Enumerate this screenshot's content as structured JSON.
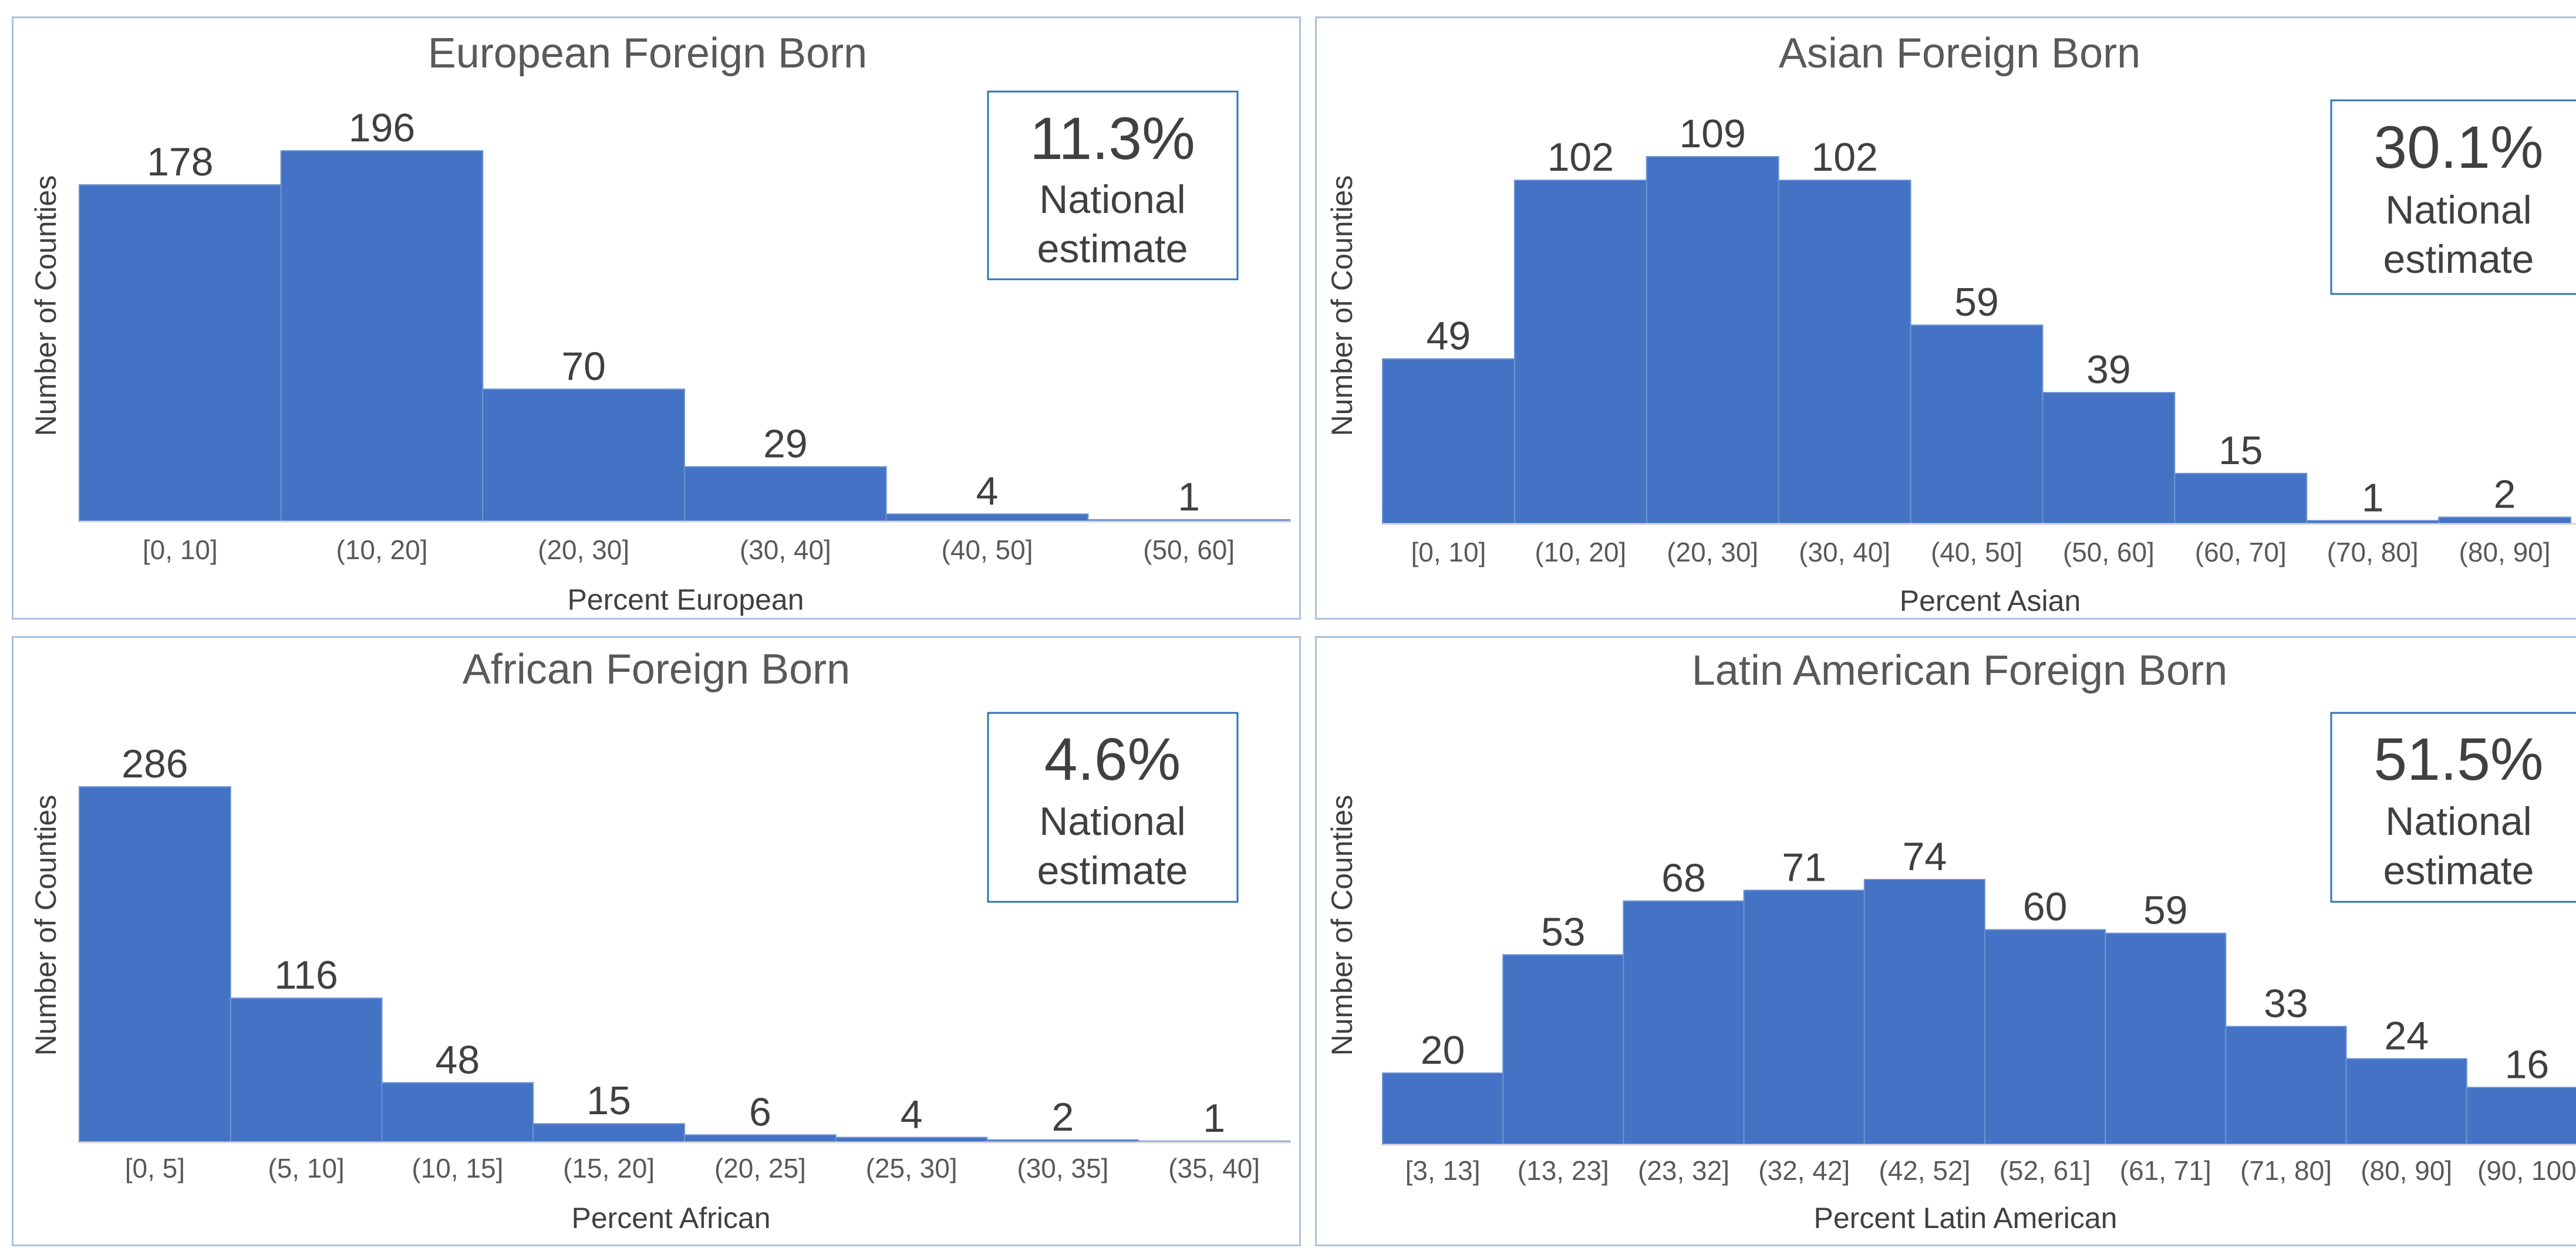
{
  "chart_data": [
    {
      "type": "bar",
      "title": "European Foreign Born",
      "xlabel": "Percent European",
      "ylabel": "Number of Counties",
      "categories": [
        "[0, 10]",
        "(10, 20]",
        "(20, 30]",
        "(30, 40]",
        "(40, 50]",
        "(50, 60]"
      ],
      "values": [
        178,
        196,
        70,
        29,
        4,
        1
      ],
      "ylim": [
        0,
        196
      ],
      "grid": false,
      "legend": "none",
      "annotation": {
        "value": "11.3%",
        "line1": "National",
        "line2": "estimate"
      },
      "color": "#4472c4"
    },
    {
      "type": "bar",
      "title": "Asian Foreign Born",
      "xlabel": "Percent Asian",
      "ylabel": "Number of Counties",
      "categories": [
        "[0, 10]",
        "(10, 20]",
        "(20, 30]",
        "(30, 40]",
        "(40, 50]",
        "(50, 60]",
        "(60, 70]",
        "(70, 80]",
        "(80, 90]"
      ],
      "values": [
        49,
        102,
        109,
        102,
        59,
        39,
        15,
        1,
        2
      ],
      "ylim": [
        0,
        109
      ],
      "grid": false,
      "legend": "none",
      "annotation": {
        "value": "30.1%",
        "line1": "National",
        "line2": "estimate"
      },
      "color": "#4472c4"
    },
    {
      "type": "bar",
      "title": "African Foreign Born",
      "xlabel": "Percent African",
      "ylabel": "Number of Counties",
      "categories": [
        "[0, 5]",
        "(5, 10]",
        "(10, 15]",
        "(15, 20]",
        "(20, 25]",
        "(25, 30]",
        "(30, 35]",
        "(35, 40]"
      ],
      "values": [
        286,
        116,
        48,
        15,
        6,
        4,
        2,
        1
      ],
      "ylim": [
        0,
        286
      ],
      "grid": false,
      "legend": "none",
      "annotation": {
        "value": "4.6%",
        "line1": "National",
        "line2": "estimate"
      },
      "color": "#4472c4"
    },
    {
      "type": "bar",
      "title": "Latin American Foreign Born",
      "xlabel": "Percent Latin American",
      "ylabel": "Number of Counties",
      "categories": [
        "[3, 13]",
        "(13, 23]",
        "(23, 32]",
        "(32, 42]",
        "(42, 52]",
        "(52, 61]",
        "(61, 71]",
        "(71, 80]",
        "(80, 90]",
        "(90, 100"
      ],
      "values": [
        20,
        53,
        68,
        71,
        74,
        60,
        59,
        33,
        24,
        16
      ],
      "ylim": [
        0,
        74
      ],
      "grid": false,
      "legend": "none",
      "annotation": {
        "value": "51.5%",
        "line1": "National",
        "line2": "estimate"
      },
      "color": "#4472c4"
    }
  ]
}
